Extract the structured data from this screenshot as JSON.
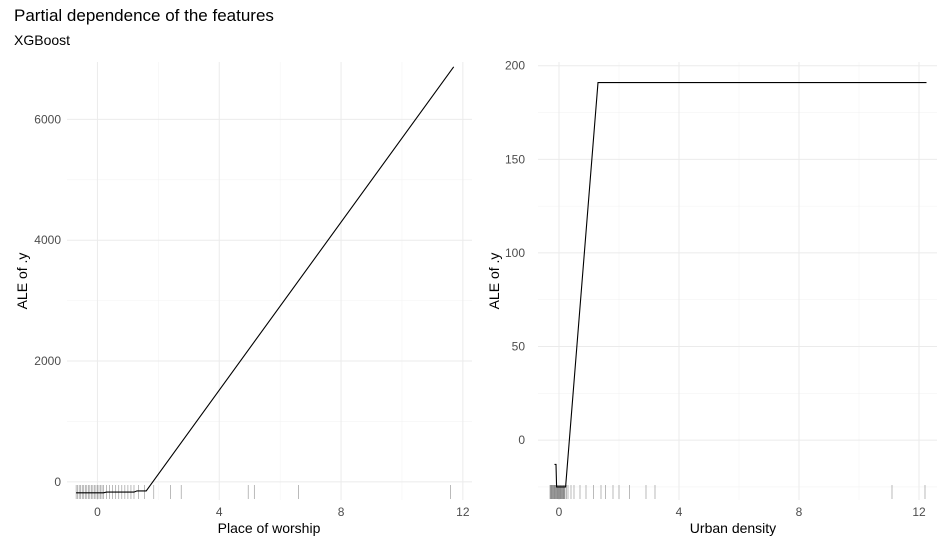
{
  "title": "Partial dependence of the features",
  "subtitle": "XGBoost",
  "chart_data": [
    {
      "type": "line",
      "xlabel": "Place of worship",
      "ylabel": "ALE of .y",
      "xlim": [
        -1,
        12.3
      ],
      "ylim": [
        -300,
        6950
      ],
      "xticks": [
        0,
        4,
        8,
        12
      ],
      "yticks": [
        0,
        2000,
        4000,
        6000
      ],
      "grid": true,
      "series": [
        {
          "x": [
            -0.7,
            0.2,
            0.3,
            1.2,
            1.3,
            1.6,
            11.7
          ],
          "y": [
            -180,
            -180,
            -170,
            -170,
            -150,
            -150,
            6870
          ]
        }
      ],
      "rug": [
        -0.7,
        -0.65,
        -0.6,
        -0.55,
        -0.5,
        -0.45,
        -0.4,
        -0.35,
        -0.3,
        -0.25,
        -0.2,
        -0.15,
        -0.1,
        -0.05,
        0,
        0.05,
        0.1,
        0.15,
        0.2,
        0.3,
        0.4,
        0.5,
        0.6,
        0.7,
        0.8,
        0.9,
        1.0,
        1.1,
        1.2,
        1.35,
        1.55,
        1.85,
        2.4,
        2.75,
        4.95,
        5.15,
        6.6,
        11.6
      ]
    },
    {
      "type": "line",
      "xlabel": "Urban density",
      "ylabel": "ALE of .y",
      "xlim": [
        -0.7,
        12.6
      ],
      "ylim": [
        -32,
        202
      ],
      "xticks": [
        0,
        4,
        8,
        12
      ],
      "yticks": [
        0,
        50,
        100,
        150,
        200
      ],
      "grid": true,
      "series": [
        {
          "x": [
            -0.15,
            -0.1,
            -0.08,
            0.22,
            1.3,
            12.25
          ],
          "y": [
            -13,
            -13,
            -25,
            -25,
            191,
            191
          ]
        }
      ],
      "rug": [
        -0.3,
        -0.28,
        -0.26,
        -0.24,
        -0.22,
        -0.2,
        -0.18,
        -0.16,
        -0.14,
        -0.12,
        -0.1,
        -0.08,
        -0.06,
        -0.04,
        -0.02,
        0,
        0.02,
        0.04,
        0.06,
        0.08,
        0.1,
        0.12,
        0.14,
        0.16,
        0.18,
        0.2,
        0.25,
        0.3,
        0.4,
        0.5,
        0.7,
        0.9,
        1.15,
        1.4,
        1.55,
        1.8,
        2.0,
        2.35,
        2.9,
        3.2,
        11.1,
        12.2
      ]
    }
  ]
}
